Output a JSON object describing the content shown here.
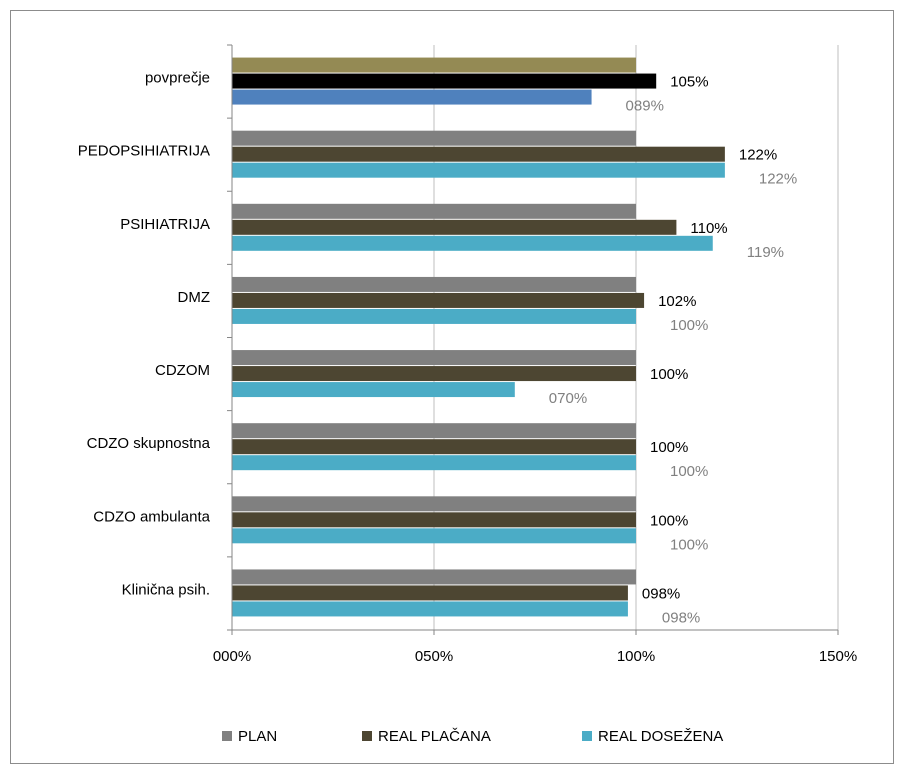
{
  "chart_data": {
    "type": "bar",
    "orientation": "horizontal",
    "categories": [
      "povprečje",
      "PEDOPSIHIATRIJA",
      "PSIHIATRIJA",
      "DMZ",
      "CDZOM",
      "CDZO skupnostna",
      "CDZO ambulanta",
      "Klinična psih."
    ],
    "series": [
      {
        "name": "PLAN",
        "values": [
          1.0,
          1.0,
          1.0,
          1.0,
          1.0,
          1.0,
          1.0,
          1.0
        ],
        "color": "#808080"
      },
      {
        "name": "REAL PLAČANA",
        "values": [
          1.05,
          1.22,
          1.1,
          1.02,
          1.0,
          1.0,
          1.0,
          0.98
        ],
        "color": "#4d4632"
      },
      {
        "name": "REAL DOSEŽENA",
        "values": [
          0.89,
          1.22,
          1.19,
          1.0,
          0.7,
          1.0,
          1.0,
          0.98
        ],
        "color": "#4bacc6"
      }
    ],
    "first_category_colors": [
      "#948a54",
      "#000000",
      "#4f81bd"
    ],
    "data_labels": {
      "REAL PLAČANA": [
        "105%",
        "122%",
        "110%",
        "102%",
        "100%",
        "100%",
        "100%",
        "098%"
      ],
      "REAL DOSEŽENA": [
        "089%",
        "122%",
        "119%",
        "100%",
        "070%",
        "100%",
        "100%",
        "098%"
      ]
    },
    "data_label_colors": {
      "REAL PLAČANA": "#000000",
      "REAL DOSEŽENA": "#808080"
    },
    "x_ticks": [
      0,
      0.5,
      1.0,
      1.5
    ],
    "x_tick_labels": [
      "000%",
      "050%",
      "100%",
      "150%"
    ],
    "xlim": [
      0,
      1.5
    ],
    "grid": "vertical",
    "legend": "bottom",
    "title": "",
    "xlabel": "",
    "ylabel": ""
  }
}
